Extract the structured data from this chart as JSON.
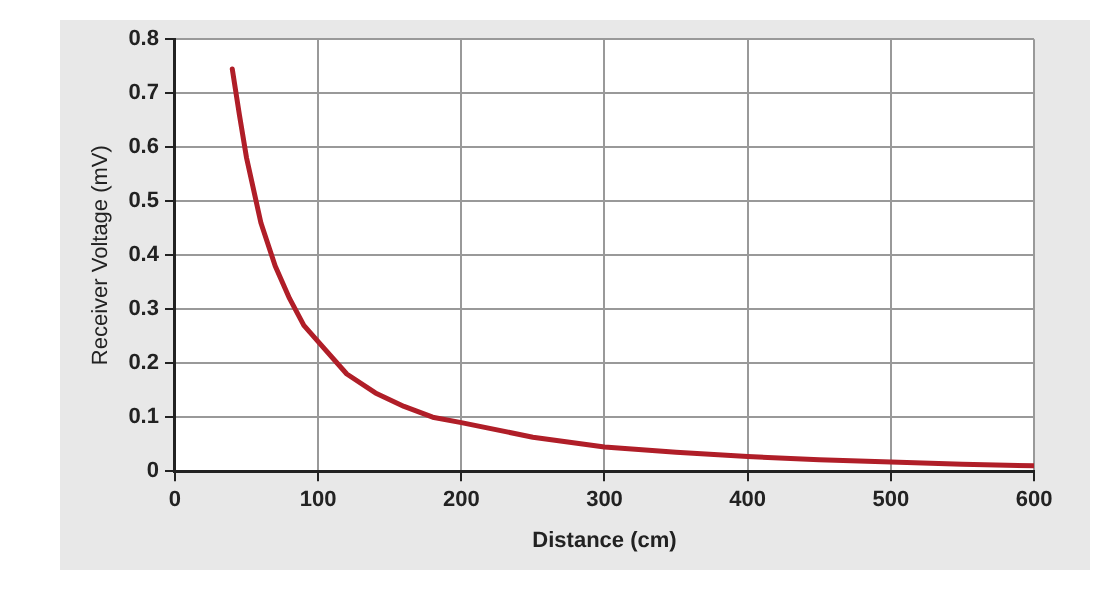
{
  "chart_data": {
    "type": "line",
    "xlabel": "Distance (cm)",
    "ylabel": "Receiver Voltage (mV)",
    "x": [
      40,
      45,
      50,
      60,
      70,
      80,
      90,
      100,
      120,
      140,
      160,
      180,
      200,
      250,
      300,
      350,
      400,
      450,
      500,
      550,
      600
    ],
    "series": [
      {
        "color": "#b01e28",
        "values": [
          0.745,
          0.66,
          0.58,
          0.46,
          0.38,
          0.32,
          0.27,
          0.24,
          0.18,
          0.145,
          0.12,
          0.1,
          0.09,
          0.063,
          0.045,
          0.035,
          0.027,
          0.021,
          0.017,
          0.013,
          0.01
        ]
      }
    ],
    "xlim": [
      0,
      600
    ],
    "xticks": [
      0,
      100,
      200,
      300,
      400,
      500,
      600
    ],
    "ylim": [
      0,
      0.8
    ],
    "yticks": [
      0,
      0.1,
      0.2,
      0.3,
      0.4,
      0.5,
      0.6,
      0.7,
      0.8
    ],
    "grid": true,
    "marker": "none",
    "line_style": "solid"
  }
}
